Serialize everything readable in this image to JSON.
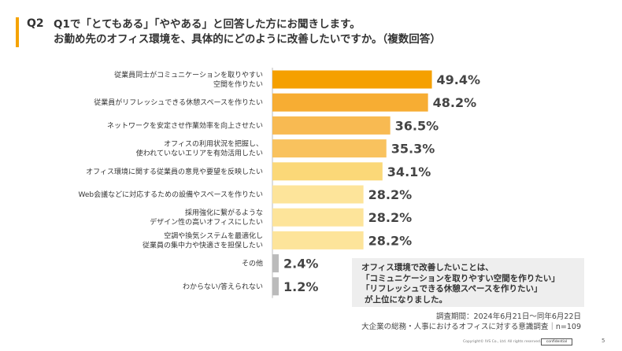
{
  "header": {
    "question_number": "Q2",
    "question_line1": "Q1で「とてもある」「ややある」と回答した方にお聞きします。",
    "question_line2": "お勤め先のオフィス環境を、具体的にどのように改善したいですか。（複数回答）"
  },
  "chart_data": {
    "type": "bar",
    "orientation": "horizontal",
    "unit": "%",
    "xlim": [
      0,
      100
    ],
    "grid": false,
    "categories": [
      [
        "従業員同士がコミュニケーションを取りやすい",
        "空間を作りたい"
      ],
      [
        "従業員がリフレッシュできる休憩スペースを作りたい"
      ],
      [
        "ネットワークを安定させ作業効率を向上させたい"
      ],
      [
        "オフィスの利用状況を把握し、",
        "使われていないエリアを有効活用したい"
      ],
      [
        "オフィス環境に関する従業員の意見や要望を反映したい"
      ],
      [
        "Web会議などに対応するための設備やスペースを作りたい"
      ],
      [
        "採用強化に繋がるような",
        "デザイン性の高いオフィスにしたい"
      ],
      [
        "空調や換気システムを最適化し",
        "従業員の集中力や快適さを担保したい"
      ],
      [
        "その他"
      ],
      [
        "わからない/答えられない"
      ]
    ],
    "values": [
      49.4,
      48.2,
      36.5,
      35.3,
      34.1,
      28.2,
      28.2,
      28.2,
      2.4,
      1.2
    ],
    "value_labels": [
      "49.4%",
      "48.2%",
      "36.5%",
      "35.3%",
      "34.1%",
      "28.2%",
      "28.2%",
      "28.2%",
      "2.4%",
      "1.2%"
    ],
    "colors": [
      "#f5a000",
      "#f7ad33",
      "#f8ba52",
      "#f9c25e",
      "#fbd878",
      "#fde49a",
      "#fde49a",
      "#fde49a",
      "#bbbbbb",
      "#bbbbbb"
    ]
  },
  "note": {
    "lines": [
      "オフィス環境で改善したいことは、",
      "「コミュニケーションを取りやすい空間を作りたい」",
      "「リフレッシュできる休憩スペースを作りたい」",
      "が上位になりました。"
    ]
  },
  "source": {
    "period": "調査期間：2024年6月21日〜同年6月22日",
    "survey": "大企業の総務・人事におけるオフィスに対する意識調査｜n=109"
  },
  "footer": {
    "copyright": "Copyright© IVS Co., Ltd. All rights reserved.",
    "badge": "confidential",
    "page": "5"
  },
  "colors": {
    "accent": "#f5a300"
  }
}
